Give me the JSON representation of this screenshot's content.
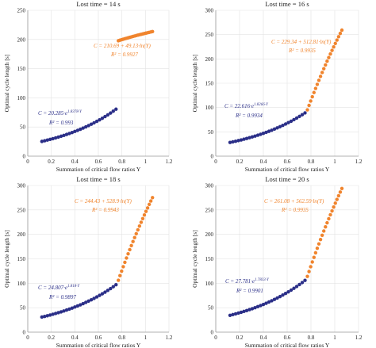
{
  "colors": {
    "blue": "#2b2f88",
    "orange": "#f0842d",
    "grid": "#e3e3e3",
    "axis": "#9a9a9a",
    "text": "#222222"
  },
  "chart_data": [
    {
      "type": "scatter",
      "title": "Lost time = 14 s",
      "xlabel": "Summation of critical flow ratios Y",
      "ylabel": "Optimal cycle length [s]",
      "xlim": [
        0,
        1.2
      ],
      "ylim": [
        0,
        250
      ],
      "xticks": [
        "0",
        "0.2",
        "0.4",
        "0.6",
        "0.8",
        "1",
        "1.2"
      ],
      "yticks": [
        "0",
        "50",
        "100",
        "150",
        "200",
        "250"
      ],
      "grid": true,
      "series": [
        {
          "color": "blue",
          "x_range": [
            0.12,
            0.75
          ],
          "exp_a": 20.285,
          "exp_b": 1.8378,
          "points": 28
        },
        {
          "color": "orange",
          "x_range": [
            0.77,
            1.06
          ],
          "c0": 210.69,
          "c1": 49.13,
          "points": 22
        }
      ],
      "annotations": {
        "orange_eq": "C = 210.69 + 49.13·ln(Y)",
        "orange_r2": "R² = 0.9927",
        "blue_eq": "C = 20.285·e",
        "blue_exp": "1.8378·Y",
        "blue_r2": "R² = 0.993"
      }
    },
    {
      "type": "scatter",
      "title": "Lost time = 16 s",
      "xlabel": "Summation of critical flow ratios Y",
      "ylabel": "Optimal cycle length [s]",
      "xlim": [
        0,
        1.2
      ],
      "ylim": [
        0,
        300
      ],
      "xticks": [
        "0",
        "0.2",
        "0.4",
        "0.6",
        "0.8",
        "1",
        "1.2"
      ],
      "yticks": [
        "0",
        "50",
        "100",
        "150",
        "200",
        "250",
        "300"
      ],
      "grid": true,
      "series": [
        {
          "color": "blue",
          "x_range": [
            0.12,
            0.75
          ],
          "exp_a": 22.616,
          "exp_b": 1.8266,
          "points": 28
        },
        {
          "color": "orange",
          "x_range": [
            0.77,
            1.06
          ],
          "c0": 229.34,
          "c1": 512.81,
          "points": 22
        }
      ],
      "annotations": {
        "orange_eq": "C = 229.34 + 512.81·ln(Y)",
        "orange_r2": "R² = 0.9935",
        "blue_eq": "C = 22.616·e",
        "blue_exp": "1.8266·Y",
        "blue_r2": "R² = 0.9934"
      }
    },
    {
      "type": "scatter",
      "title": "Lost time = 18 s",
      "xlabel": "Summation of critical flow ratios Y",
      "ylabel": "Optimal cycle length [s]",
      "xlim": [
        0,
        1.2
      ],
      "ylim": [
        0,
        300
      ],
      "xticks": [
        "0",
        "0.2",
        "0.4",
        "0.6",
        "0.8",
        "1",
        "1.2"
      ],
      "yticks": [
        "0",
        "50",
        "100",
        "150",
        "200",
        "250",
        "300"
      ],
      "grid": true,
      "series": [
        {
          "color": "blue",
          "x_range": [
            0.12,
            0.75
          ],
          "exp_a": 24.807,
          "exp_b": 1.818,
          "points": 28
        },
        {
          "color": "orange",
          "x_range": [
            0.77,
            1.06
          ],
          "c0": 244.43,
          "c1": 528.9,
          "points": 22
        }
      ],
      "annotations": {
        "orange_eq": "C = 244.43 + 528.9·ln(Y)",
        "orange_r2": "R² = 0.9943",
        "blue_eq": "C = 24.807·e",
        "blue_exp": "1.818·Y",
        "blue_r2": "R² = 0.9897"
      }
    },
    {
      "type": "scatter",
      "title": "Lost time = 20 s",
      "xlabel": "Summation of critical flow ratios Y",
      "ylabel": "Optimal cycle length [s]",
      "xlim": [
        0,
        1.2
      ],
      "ylim": [
        0,
        300
      ],
      "xticks": [
        "0",
        "0.2",
        "0.4",
        "0.6",
        "0.8",
        "1",
        "1.2"
      ],
      "yticks": [
        "0",
        "50",
        "100",
        "150",
        "200",
        "250",
        "300"
      ],
      "grid": true,
      "series": [
        {
          "color": "blue",
          "x_range": [
            0.12,
            0.75
          ],
          "exp_a": 27.781,
          "exp_b": 1.7833,
          "points": 28
        },
        {
          "color": "orange",
          "x_range": [
            0.77,
            1.06
          ],
          "c0": 261.08,
          "c1": 562.59,
          "points": 22
        }
      ],
      "annotations": {
        "orange_eq": "C = 261.08 + 562.59·ln(Y)",
        "orange_r2": "R² = 0.9935",
        "blue_eq": "C = 27.781·e",
        "blue_exp": "1.7833·Y",
        "blue_r2": "R² = 0.9901"
      }
    }
  ]
}
